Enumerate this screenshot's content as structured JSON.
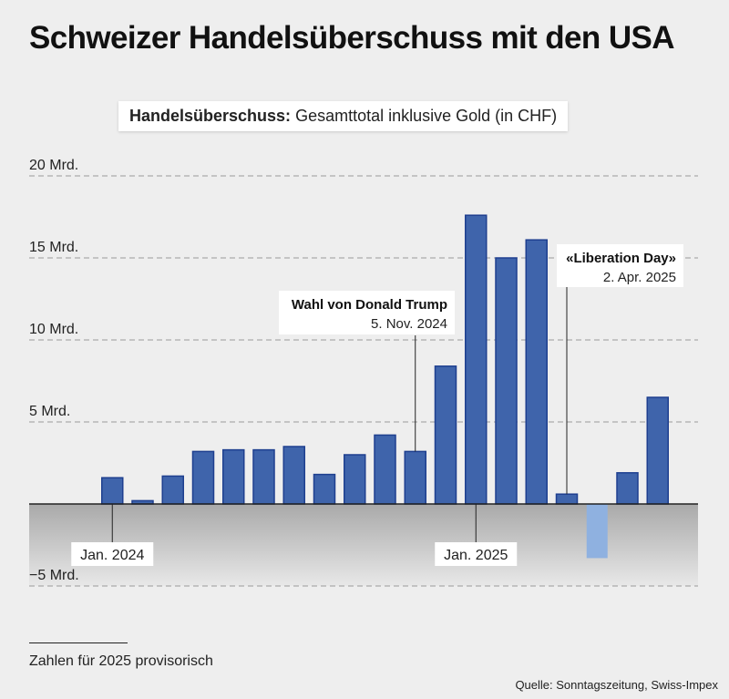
{
  "title": "Schweizer Handelsüberschuss mit den USA",
  "subtitle_bold": "Handelsüberschuss:",
  "subtitle_rest": " Gesamttotal inklusive Gold (in CHF)",
  "footnote": "Zahlen für 2025 provisorisch",
  "source": "Quelle: Sonntagszeitung, Swiss-Impex",
  "colors": {
    "bar": "#3f64ab",
    "bar_stroke": "#1e3f8f",
    "bar_negative": "#8fb1e0",
    "grid": "#9a9a9a",
    "zero": "#222222"
  },
  "chart_data": {
    "type": "bar",
    "title": "Handelsüberschuss: Gesamttotal inklusive Gold (in CHF)",
    "xlabel": "",
    "ylabel": "",
    "ylim": [
      -5,
      20
    ],
    "yticks": [
      20,
      15,
      10,
      5,
      -5
    ],
    "ytick_labels": [
      "20 Mrd.",
      "15 Mrd.",
      "10 Mrd.",
      "5 Mrd.",
      "−5 Mrd."
    ],
    "categories": [
      "2023-12",
      "2024-01",
      "2024-02",
      "2024-03",
      "2024-04",
      "2024-05",
      "2024-06",
      "2024-07",
      "2024-08",
      "2024-09",
      "2024-10",
      "2024-11",
      "2024-12",
      "2025-01",
      "2025-02",
      "2025-03",
      "2025-04",
      "2025-05",
      "2025-06",
      "2025-07",
      "2025-08"
    ],
    "values": [
      null,
      1.6,
      0.2,
      1.7,
      3.2,
      3.3,
      3.3,
      3.5,
      1.8,
      3.0,
      4.2,
      3.2,
      8.4,
      17.6,
      15.0,
      16.1,
      0.6,
      -3.3,
      1.9,
      6.5,
      null
    ],
    "provisional_from": "2025-05",
    "x_labels": [
      {
        "category": "2024-01",
        "label": "Jan. 2024"
      },
      {
        "category": "2025-01",
        "label": "Jan. 2025"
      }
    ],
    "annotations": [
      {
        "category": "2024-11",
        "title": "Wahl von Donald Trump",
        "date": "5. Nov. 2024"
      },
      {
        "category": "2025-04",
        "title": "«Liberation Day»",
        "date": "2. Apr. 2025"
      }
    ]
  }
}
